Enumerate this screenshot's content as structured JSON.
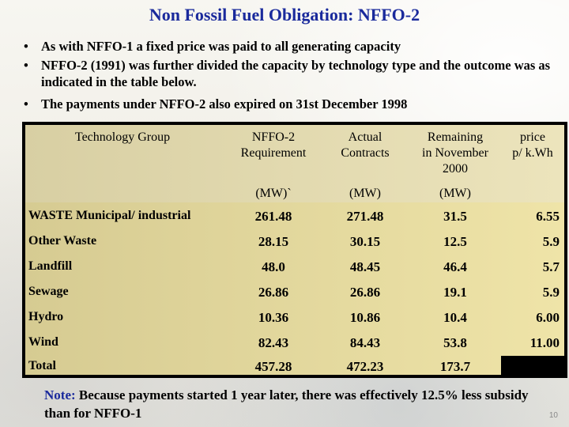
{
  "title": "Non Fossil Fuel Obligation:  NFFO-2",
  "bullets": [
    "As with NFFO-1 a fixed price was paid to all generating capacity",
    "NFFO-2 (1991)  was further divided the capacity by technology type and the outcome was as indicated in the table below.",
    "The payments under NFFO-2 also expired on 31st December 1998"
  ],
  "table": {
    "headers": {
      "group": "Technology Group",
      "requirement_line1": "NFFO-2",
      "requirement_line2": "Requirement",
      "actual_line1": "Actual",
      "actual_line2": "Contracts",
      "remaining_line1": "Remaining",
      "remaining_line2": "in November",
      "remaining_line3": "2000",
      "price_line1": "price",
      "price_line2": "p/ k.Wh"
    },
    "units": {
      "requirement": "(MW)`",
      "actual": "(MW)",
      "remaining": "(MW)"
    },
    "rows": [
      {
        "group": "WASTE Municipal/ industrial",
        "requirement": "261.48",
        "actual": "271.48",
        "remaining": "31.5",
        "price": "6.55"
      },
      {
        "group": "Other Waste",
        "requirement": "28.15",
        "actual": "30.15",
        "remaining": "12.5",
        "price": "5.9"
      },
      {
        "group": "Landfill",
        "requirement": "48.0",
        "actual": "48.45",
        "remaining": "46.4",
        "price": "5.7"
      },
      {
        "group": "Sewage",
        "requirement": "26.86",
        "actual": "26.86",
        "remaining": "19.1",
        "price": "5.9"
      },
      {
        "group": "Hydro",
        "requirement": "10.36",
        "actual": "10.86",
        "remaining": "10.4",
        "price": "6.00"
      },
      {
        "group": "Wind",
        "requirement": "82.43",
        "actual": "84.43",
        "remaining": "53.8",
        "price": "11.00"
      },
      {
        "group": "Total",
        "requirement": "457.28",
        "actual": "472.23",
        "remaining": "173.7",
        "price": ""
      }
    ]
  },
  "note": {
    "label": "Note:",
    "text": "  Because payments started 1 year later,  there was effectively 12.5% less subsidy than for NFFO-1"
  },
  "page_number": "10",
  "colors": {
    "title": "#1a2a9c",
    "table_header_bg": "#e2d9ae",
    "table_body_bg": "#e2d79c",
    "border": "#000000"
  }
}
